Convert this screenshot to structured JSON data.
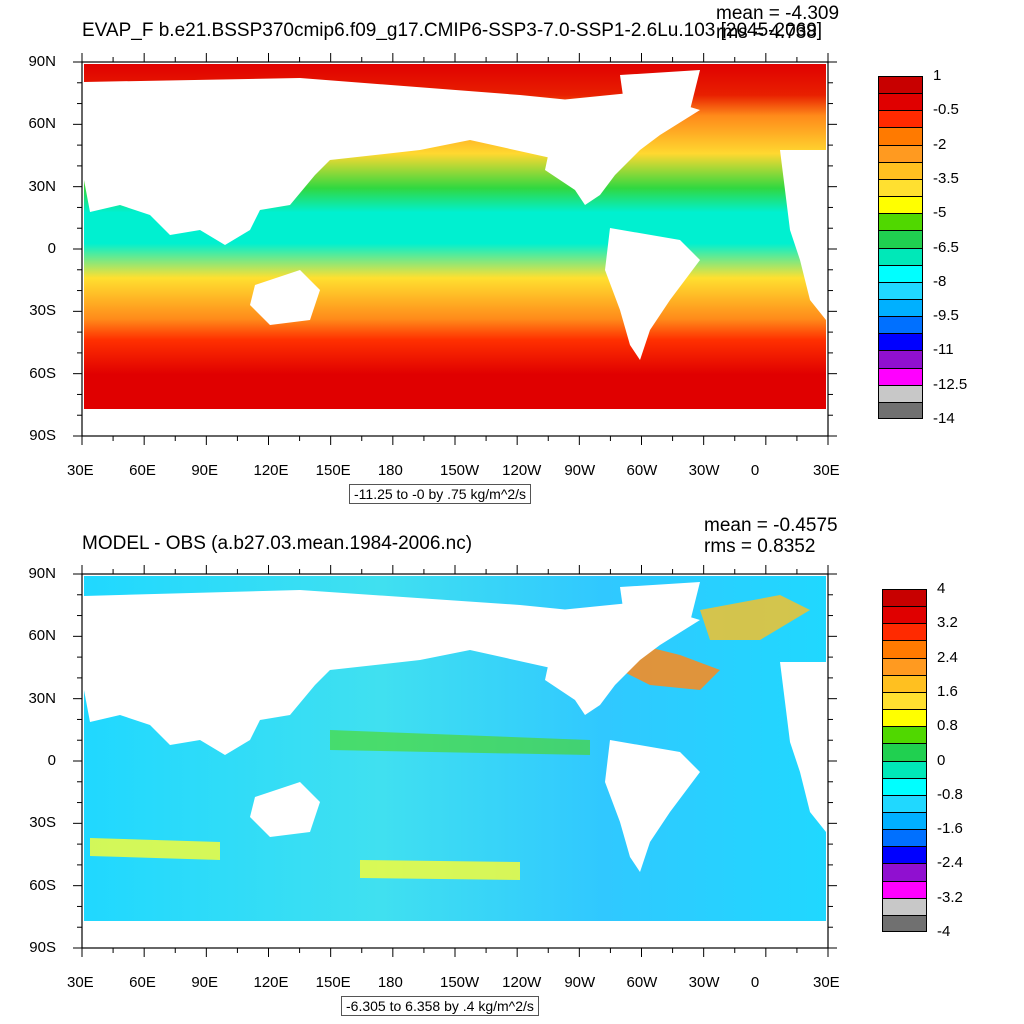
{
  "panels": [
    {
      "title": "EVAP_F b.e21.BSSP370cmip6.f09_g17.CMIP6-SSP3-7.0-SSP1-2.6Lu.103 [2045-2069]",
      "mean_label": "mean = -4.309",
      "rms_label": "rms = 4.738",
      "info": "-11.25 to -0 by .75 kg/m^2/s",
      "colorbar_labels": [
        "1",
        "-0.5",
        "-2",
        "-3.5",
        "-5",
        "-6.5",
        "-8",
        "-9.5",
        "-11",
        "-12.5",
        "-14"
      ],
      "colorbar_colors": [
        "#c80000",
        "#e00000",
        "#ff2a00",
        "#ff7a00",
        "#ff9a20",
        "#ffc020",
        "#ffe030",
        "#ffff00",
        "#50d800",
        "#20d050",
        "#00e8b8",
        "#00ffff",
        "#20d8ff",
        "#00b0ff",
        "#0070ff",
        "#0000ff",
        "#9010d0",
        "#ff00ff",
        "#c8c8c8",
        "#707070"
      ]
    },
    {
      "title": "MODEL - OBS (a.b27.03.mean.1984-2006.nc)",
      "mean_label": "mean = -0.4575",
      "rms_label": "rms = 0.8352",
      "info": "-6.305 to 6.358 by .4 kg/m^2/s",
      "colorbar_labels": [
        "4",
        "3.2",
        "2.4",
        "1.6",
        "0.8",
        "0",
        "-0.8",
        "-1.6",
        "-2.4",
        "-3.2",
        "-4"
      ],
      "colorbar_colors": [
        "#c80000",
        "#e00000",
        "#ff2a00",
        "#ff7a00",
        "#ff9a20",
        "#ffc020",
        "#ffe030",
        "#ffff00",
        "#50d800",
        "#20d050",
        "#00e8b8",
        "#00ffff",
        "#20d8ff",
        "#00b0ff",
        "#0070ff",
        "#0000ff",
        "#9010d0",
        "#ff00ff",
        "#c8c8c8",
        "#707070"
      ]
    }
  ],
  "lat_labels": [
    "90N",
    "60N",
    "30N",
    "0",
    "30S",
    "60S",
    "90S"
  ],
  "lon_labels": [
    "30E",
    "60E",
    "90E",
    "120E",
    "150E",
    "180",
    "150W",
    "120W",
    "90W",
    "60W",
    "30W",
    "0",
    "30E"
  ]
}
